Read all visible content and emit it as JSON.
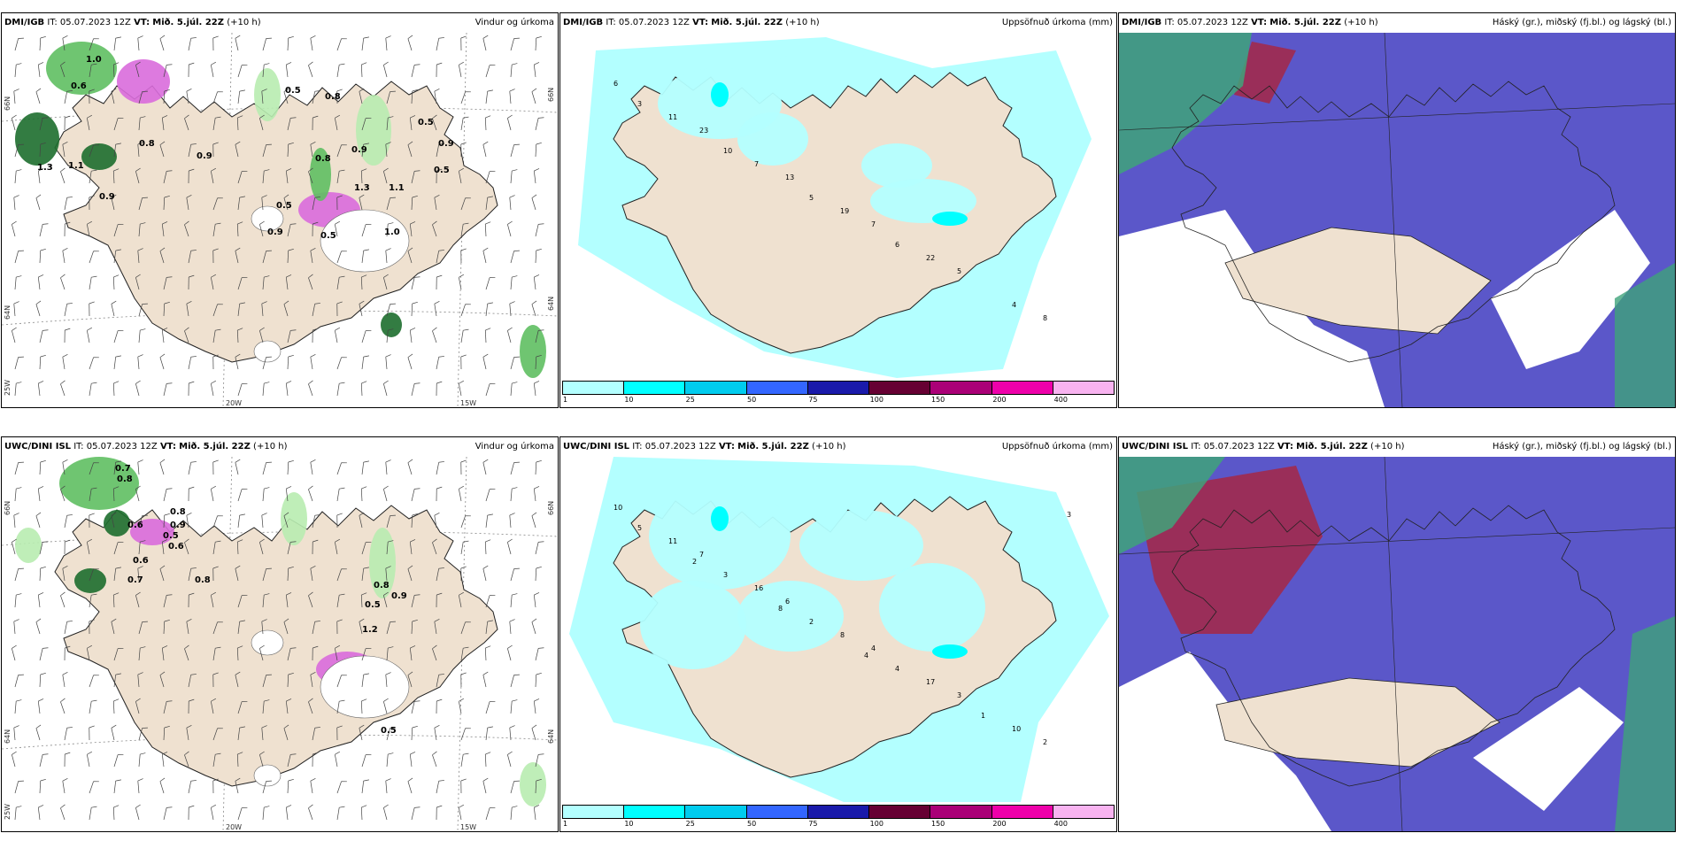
{
  "rows": [
    {
      "id": "dmi",
      "model": "DMI/IGB",
      "it_label": "IT:",
      "it_value": "05.07.2023 12Z",
      "vt_label": "VT:",
      "vt_value": "Mið. 5.júl. 22Z",
      "lead": "(+10 h)"
    },
    {
      "id": "uwc",
      "model": "UWC/DINI ISL",
      "it_label": "IT:",
      "it_value": "05.07.2023 12Z",
      "vt_label": "VT:",
      "vt_value": "Mið. 5.júl. 22Z",
      "lead": "(+10 h)"
    }
  ],
  "products": {
    "wind": "Vindur og úrkoma",
    "precip": "Uppsöfnuð úrkoma (mm)",
    "cloud": "Háský (gr.), miðský (fj.bl.) og lágský (bl.)"
  },
  "coords": {
    "lat66": "66N",
    "lat64": "64N",
    "lon25": "25W",
    "lon20": "20W",
    "lon15": "15W",
    "right66": "66N",
    "right64": "64N"
  },
  "legend": {
    "labels": [
      "1",
      "10",
      "25",
      "50",
      "75",
      "100",
      "150",
      "200",
      "400"
    ],
    "colors": [
      "#b3ffff",
      "#00ffff",
      "#00ccee",
      "#3366ff",
      "#1a1aaa",
      "#660033",
      "#aa0077",
      "#ee00aa",
      "#f8b3f0"
    ]
  },
  "wind_labels": {
    "dmi": [
      "1.0",
      "0.6",
      "0.8",
      "0.5",
      "0.8",
      "0.9",
      "0.5",
      "0.5",
      "0.9",
      "1.3",
      "1.1",
      "0.9",
      "0.8",
      "0.9",
      "1.3",
      "1.1",
      "0.5",
      "0.5",
      "1.0",
      "0.9"
    ],
    "uwc": [
      "0.7",
      "0.8",
      "0.6",
      "0.6",
      "0.7",
      "0.8",
      "0.9",
      "0.8",
      "0.5",
      "0.9",
      "0.8",
      "0.5",
      "1.2",
      "0.5",
      "0.6"
    ]
  },
  "precip_labels": {
    "dmi": [
      "6",
      "23",
      "13",
      "7",
      "5",
      "8",
      "11",
      "7",
      "19",
      "22",
      "4",
      "3",
      "10",
      "5",
      "6"
    ],
    "uwc": [
      "10",
      "7",
      "6",
      "4",
      "3",
      "2",
      "11",
      "16",
      "8",
      "17",
      "10",
      "5",
      "3",
      "2",
      "4",
      "1",
      "3",
      "2",
      "8",
      "4"
    ]
  },
  "colors": {
    "land": "#efe1d0",
    "precip_light": "#b3ffff",
    "precip_mid": "#00ffff",
    "green_light": "#b8ecb0",
    "green_mid": "#5fbf62",
    "green_dark": "#1d6e2e",
    "magenta": "#d96bdb",
    "cloud_low": "#5b57c9",
    "cloud_high": "#a12a4c",
    "cloud_mid": "#3fa37a"
  }
}
